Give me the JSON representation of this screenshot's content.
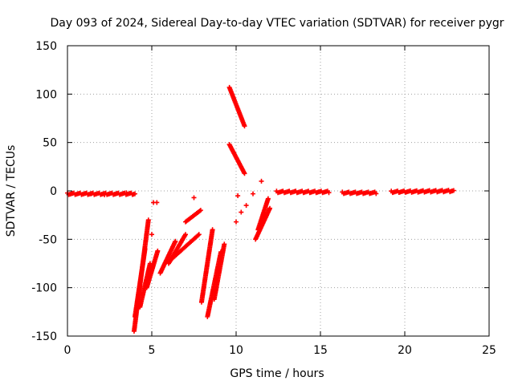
{
  "chart_data": {
    "type": "scatter",
    "title": "Day 093 of 2024, Sidereal Day-to-day VTEC variation (SDTVAR) for receiver pygr",
    "xlabel": "GPS time / hours",
    "ylabel": "SDTVAR / TECUs",
    "xlim": [
      0,
      25
    ],
    "ylim": [
      -150,
      150
    ],
    "xticks": [
      0,
      5,
      10,
      15,
      20,
      25
    ],
    "yticks": [
      -150,
      -100,
      -50,
      0,
      50,
      100,
      150
    ],
    "grid": true,
    "marker": "+",
    "marker_color": "#ff0000",
    "segments": [
      {
        "name": "baseline-a",
        "x": [
          0.0,
          4.0
        ],
        "y": [
          -3,
          -3
        ]
      },
      {
        "name": "baseline-b",
        "x": [
          12.4,
          15.5
        ],
        "y": [
          -1,
          -1
        ]
      },
      {
        "name": "baseline-c",
        "x": [
          16.3,
          18.3
        ],
        "y": [
          -2,
          -2
        ]
      },
      {
        "name": "baseline-d",
        "x": [
          19.2,
          22.9
        ],
        "y": [
          -1,
          0
        ]
      },
      {
        "name": "arc-1",
        "x": [
          3.95,
          4.8
        ],
        "y": [
          -145,
          -30
        ]
      },
      {
        "name": "arc-2",
        "x": [
          4.0,
          4.6
        ],
        "y": [
          -130,
          -60
        ]
      },
      {
        "name": "arc-3",
        "x": [
          4.3,
          4.9
        ],
        "y": [
          -120,
          -75
        ]
      },
      {
        "name": "arc-4",
        "x": [
          4.7,
          5.35
        ],
        "y": [
          -100,
          -62
        ]
      },
      {
        "name": "arc-5",
        "x": [
          5.5,
          6.4
        ],
        "y": [
          -85,
          -52
        ]
      },
      {
        "name": "arc-6",
        "x": [
          6.0,
          7.0
        ],
        "y": [
          -75,
          -45
        ]
      },
      {
        "name": "arc-7",
        "x": [
          6.2,
          7.8
        ],
        "y": [
          -70,
          -45
        ]
      },
      {
        "name": "arc-8",
        "x": [
          7.0,
          7.9
        ],
        "y": [
          -32,
          -20
        ]
      },
      {
        "name": "arc-9",
        "x": [
          7.95,
          8.6
        ],
        "y": [
          -115,
          -40
        ]
      },
      {
        "name": "arc-10",
        "x": [
          8.3,
          9.1
        ],
        "y": [
          -130,
          -63
        ]
      },
      {
        "name": "arc-11",
        "x": [
          8.7,
          9.3
        ],
        "y": [
          -112,
          -55
        ]
      },
      {
        "name": "arc-12",
        "x": [
          9.6,
          10.5
        ],
        "y": [
          107,
          67
        ]
      },
      {
        "name": "arc-13",
        "x": [
          9.6,
          10.5
        ],
        "y": [
          48,
          18
        ]
      },
      {
        "name": "arc-14",
        "x": [
          11.15,
          12.0
        ],
        "y": [
          -50,
          -18
        ]
      },
      {
        "name": "arc-15",
        "x": [
          11.3,
          11.9
        ],
        "y": [
          -40,
          -8
        ]
      }
    ],
    "points": [
      {
        "x": 5.1,
        "y": -12
      },
      {
        "x": 5.3,
        "y": -12
      },
      {
        "x": 5.0,
        "y": -45
      },
      {
        "x": 7.5,
        "y": -7
      },
      {
        "x": 10.1,
        "y": -5
      },
      {
        "x": 10.6,
        "y": -15
      },
      {
        "x": 10.3,
        "y": -22
      },
      {
        "x": 10.0,
        "y": -32
      },
      {
        "x": 11.5,
        "y": 10
      },
      {
        "x": 11.0,
        "y": -3
      },
      {
        "x": 1.4,
        "y": -3
      },
      {
        "x": 2.2,
        "y": -4
      },
      {
        "x": 3.5,
        "y": -2
      }
    ]
  }
}
